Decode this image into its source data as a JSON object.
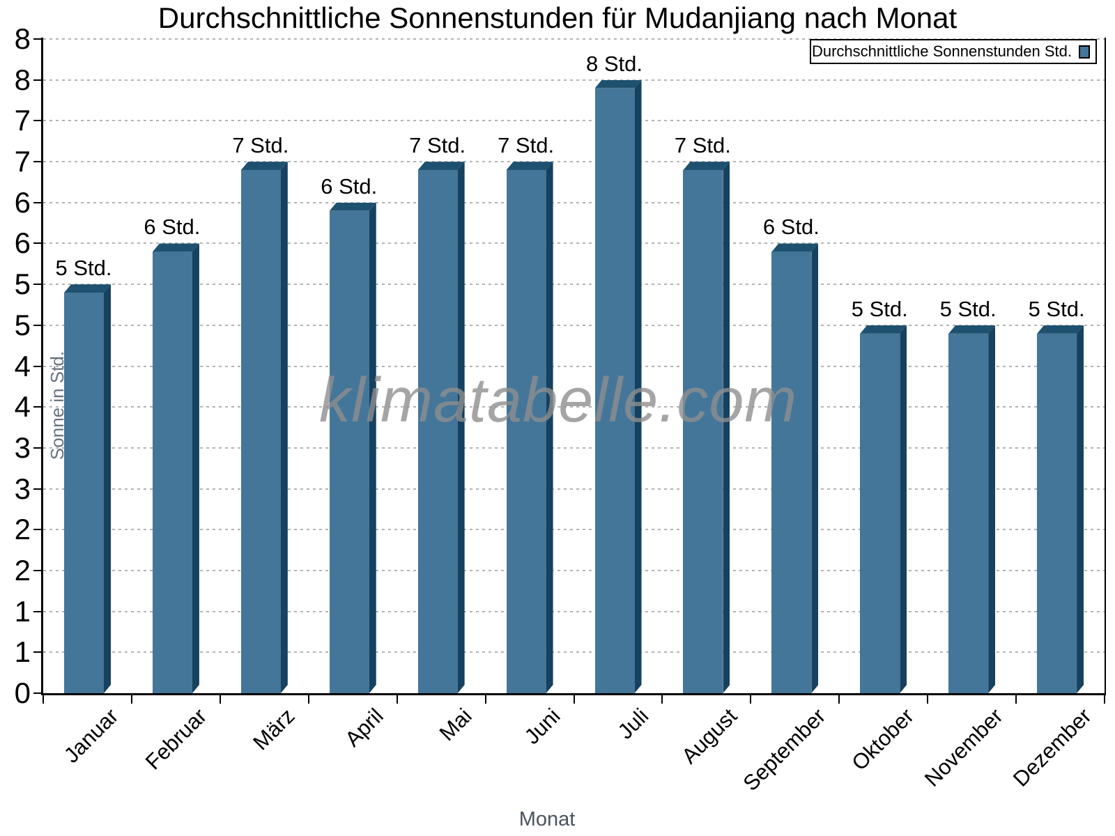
{
  "title": "Durchschnittliche Sonnenstunden für Mudanjiang nach Monat",
  "watermark": "klimatabelle.com",
  "legend": {
    "label": "Durchschnittliche Sonnenstunden Std.",
    "position": "top-right"
  },
  "axes": {
    "x_title": "Monat",
    "y_title": "Sonne in Std."
  },
  "chart_data": {
    "type": "bar",
    "title": "Durchschnittliche Sonnenstunden für Mudanjiang nach Monat",
    "xlabel": "Monat",
    "ylabel": "Sonne in Std.",
    "categories": [
      "Januar",
      "Februar",
      "März",
      "April",
      "Mai",
      "Juni",
      "Juli",
      "August",
      "September",
      "Oktober",
      "November",
      "Dezember"
    ],
    "values": [
      5,
      6,
      7,
      6,
      7,
      7,
      8,
      7,
      6,
      5,
      5,
      5
    ],
    "bar_labels": [
      "5 Std.",
      "6 Std.",
      "7 Std.",
      "6 Std.",
      "7 Std.",
      "7 Std.",
      "8 Std.",
      "7 Std.",
      "6 Std.",
      "5 Std.",
      "5 Std.",
      "5 Std."
    ],
    "bar_heights_exact": [
      5.0,
      5.5,
      6.5,
      6.0,
      6.5,
      6.5,
      7.5,
      6.5,
      5.5,
      4.5,
      4.5,
      4.5
    ],
    "ylim": [
      0,
      8
    ],
    "ytick_step": 0.5,
    "ytick_labels_bottom_to_top": [
      "0",
      "1",
      "1",
      "2",
      "2",
      "3",
      "3",
      "4",
      "4",
      "5",
      "5",
      "6",
      "6",
      "7",
      "7",
      "8",
      "8"
    ],
    "legend_entry": "Durchschnittliche Sonnenstunden Std.",
    "grid": "horizontal dashed",
    "colors": {
      "bar_front": "#447699",
      "bar_top": "#1e516f",
      "bar_side": "#16415f",
      "gridline": "#b3b3b3",
      "axis": "#000000",
      "y_title_text": "#66727f",
      "x_title_text": "#4b545e",
      "watermark_text": "#8e8e8e"
    }
  }
}
